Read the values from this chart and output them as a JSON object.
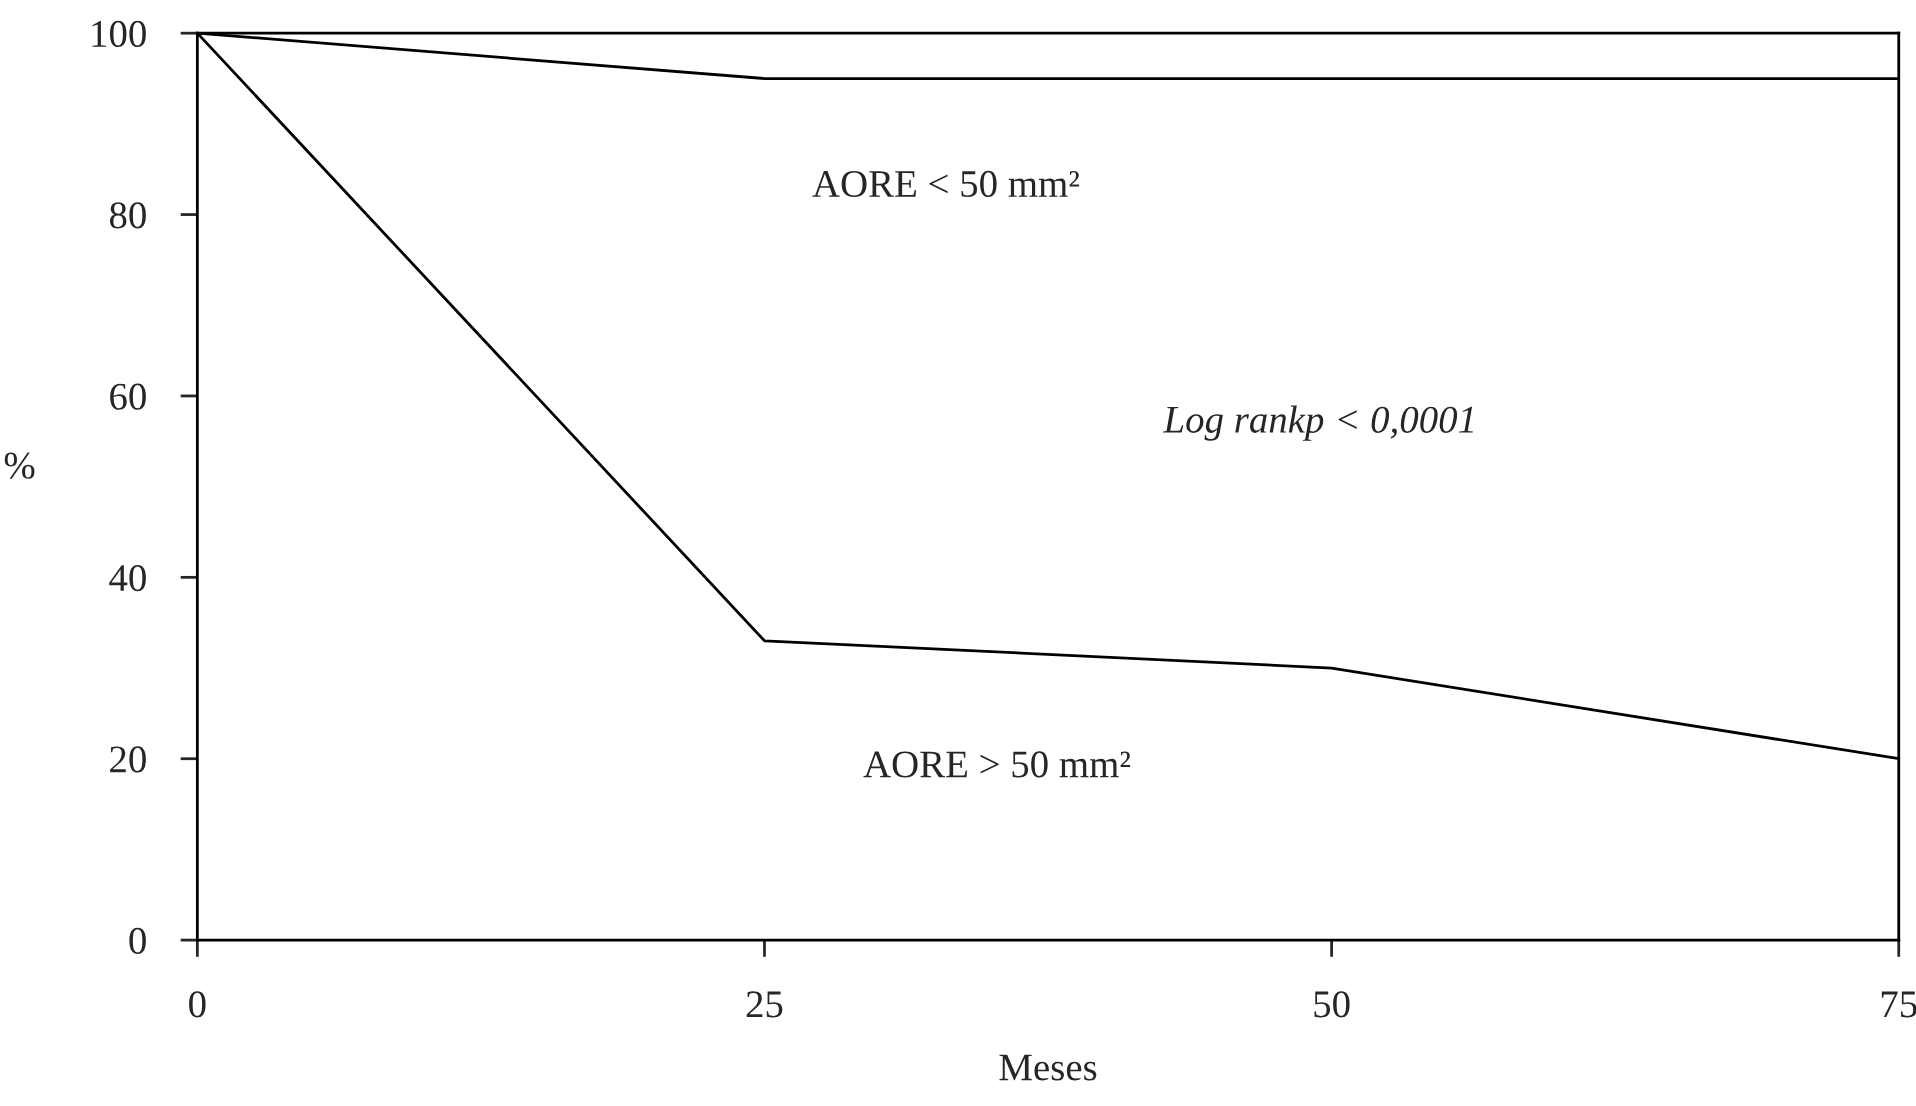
{
  "chart_data": {
    "type": "line",
    "xlabel": "Meses",
    "ylabel": "%",
    "x": [
      0,
      25,
      50,
      75
    ],
    "series": [
      {
        "color": "#000000",
        "values": [
          100,
          95,
          95,
          95
        ]
      },
      {
        "color": "#000000",
        "values": [
          100,
          33,
          30,
          20
        ]
      }
    ],
    "annotations": [
      "AORE < 50 mm²",
      "Log rankp < 0,0001",
      "AORE > 50 mm²"
    ],
    "xlim": [
      0,
      75
    ],
    "xticks": [
      0,
      25,
      50,
      75
    ],
    "ylim": [
      0,
      100
    ],
    "yticks": [
      0,
      20,
      40,
      60,
      80,
      100
    ],
    "grid": false,
    "legend": false,
    "marker": "none",
    "line_style": "solid"
  }
}
